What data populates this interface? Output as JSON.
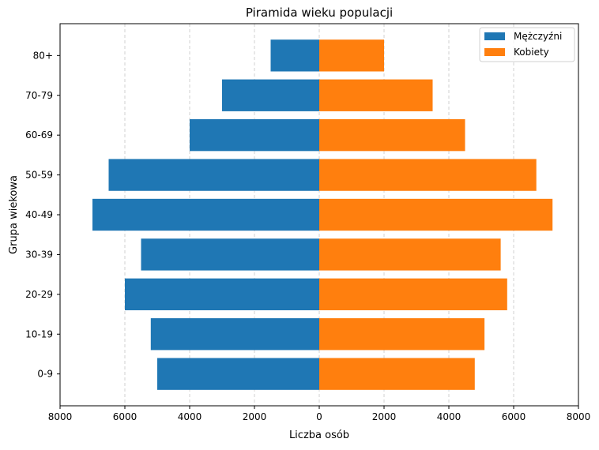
{
  "chart_data": {
    "type": "bar",
    "orientation": "horizontal",
    "title": "Piramida wieku populacji",
    "xlabel": "Liczba osób",
    "ylabel": "Grupa wiekowa",
    "categories": [
      "0-9",
      "10-19",
      "20-29",
      "30-39",
      "40-49",
      "50-59",
      "60-69",
      "70-79",
      "80+"
    ],
    "series": [
      {
        "name": "Mężczyźni",
        "color": "#1f77b4",
        "values": [
          -5000,
          -5200,
          -6000,
          -5500,
          -7000,
          -6500,
          -4000,
          -3000,
          -1500
        ]
      },
      {
        "name": "Kobiety",
        "color": "#ff7f0e",
        "values": [
          4800,
          5100,
          5800,
          5600,
          7200,
          6700,
          4500,
          3500,
          2000
        ]
      }
    ],
    "xlim": [
      -8000,
      8000
    ],
    "xticks": [
      -8000,
      -6000,
      -4000,
      -2000,
      0,
      2000,
      4000,
      6000,
      8000
    ],
    "xtick_labels": [
      "8000",
      "6000",
      "4000",
      "2000",
      "0",
      "2000",
      "4000",
      "6000",
      "8000"
    ],
    "grid": "x-dashed",
    "legend_position": "top-right"
  }
}
